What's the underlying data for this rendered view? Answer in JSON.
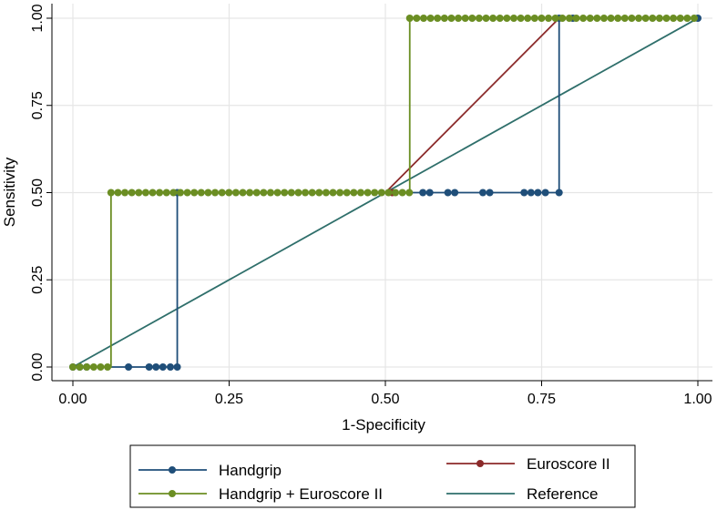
{
  "chart_data": {
    "type": "line",
    "title": "",
    "xlabel": "1-Specificity",
    "ylabel": "Sensitivity",
    "xlim": [
      0,
      1
    ],
    "ylim": [
      0,
      1
    ],
    "grid": true,
    "legend_position": "bottom",
    "x_ticks": [
      0,
      0.25,
      0.5,
      0.75,
      1
    ],
    "x_tick_labels": [
      "0.00",
      "0.25",
      "0.50",
      "0.75",
      "1.00"
    ],
    "y_ticks": [
      0,
      0.25,
      0.5,
      0.75,
      1
    ],
    "y_tick_labels": [
      "0.00",
      "0.25",
      "0.50",
      "0.75",
      "1.00"
    ],
    "series": [
      {
        "name": "Handgrip",
        "color": "#1f4e79",
        "marker": "circle",
        "line": [
          [
            0,
            0
          ],
          [
            0.167,
            0
          ],
          [
            0.167,
            0.5
          ],
          [
            0.778,
            0.5
          ],
          [
            0.778,
            1
          ],
          [
            1,
            1
          ]
        ],
        "markers": [
          [
            0,
            0
          ],
          [
            0.011,
            0
          ],
          [
            0.022,
            0
          ],
          [
            0.089,
            0
          ],
          [
            0.122,
            0
          ],
          [
            0.133,
            0
          ],
          [
            0.144,
            0
          ],
          [
            0.156,
            0
          ],
          [
            0.167,
            0
          ],
          [
            0.167,
            0.5
          ],
          [
            0.56,
            0.5
          ],
          [
            0.571,
            0.5
          ],
          [
            0.6,
            0.5
          ],
          [
            0.611,
            0.5
          ],
          [
            0.656,
            0.5
          ],
          [
            0.667,
            0.5
          ],
          [
            0.722,
            0.5
          ],
          [
            0.733,
            0.5
          ],
          [
            0.744,
            0.5
          ],
          [
            0.756,
            0.5
          ],
          [
            0.778,
            0.5
          ],
          [
            0.778,
            1
          ],
          [
            0.8,
            1
          ],
          [
            1,
            1
          ]
        ]
      },
      {
        "name": "Euroscore II",
        "color": "#8b2a2a",
        "marker": "circle",
        "line": [
          [
            0.5,
            0.5
          ],
          [
            0.778,
            1
          ]
        ],
        "markers": [
          [
            0.511,
            0.5
          ]
        ]
      },
      {
        "name": "Handgrip + Euroscore II",
        "color": "#6b8e23",
        "marker": "circle",
        "line": [
          [
            0,
            0
          ],
          [
            0.061,
            0
          ],
          [
            0.061,
            0.5
          ],
          [
            0.539,
            0.5
          ],
          [
            0.539,
            1
          ],
          [
            1,
            1
          ]
        ],
        "markers": "step_dense"
      },
      {
        "name": "Reference",
        "color": "#2f6f6b",
        "marker": "none",
        "line": [
          [
            0,
            0
          ],
          [
            1,
            1
          ]
        ],
        "markers": []
      }
    ]
  }
}
